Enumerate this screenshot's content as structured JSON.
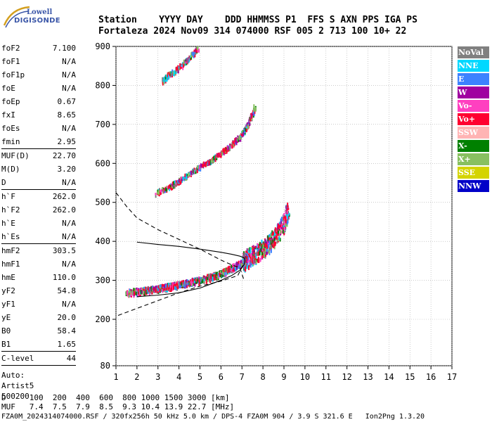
{
  "logo": {
    "line1": "Lowell",
    "line2": "DIGISONDE"
  },
  "header": {
    "line1": "Station    YYYY DAY    DDD HHMMSS P1  FFS S AXN PPS IGA PS",
    "line2": "Fortaleza 2024 Nov09 314 074000 RSF 005 2 713 100 10+ 22"
  },
  "params_groups": [
    [
      {
        "label": "foF2",
        "value": "7.100"
      },
      {
        "label": "foF1",
        "value": "N/A"
      },
      {
        "label": "foF1p",
        "value": "N/A"
      },
      {
        "label": "foE",
        "value": "N/A"
      },
      {
        "label": "foEp",
        "value": "0.67"
      },
      {
        "label": "fxI",
        "value": "8.65"
      },
      {
        "label": "foEs",
        "value": "N/A"
      },
      {
        "label": "fmin",
        "value": "2.95"
      }
    ],
    [
      {
        "label": "MUF(D)",
        "value": "22.70"
      },
      {
        "label": "M(D)",
        "value": "3.20"
      },
      {
        "label": "D",
        "value": "N/A"
      }
    ],
    [
      {
        "label": "h`F",
        "value": "262.0"
      },
      {
        "label": "h`F2",
        "value": "262.0"
      },
      {
        "label": "h`E",
        "value": "N/A"
      },
      {
        "label": "h`Es",
        "value": "N/A"
      }
    ],
    [
      {
        "label": "hmF2",
        "value": "303.5"
      },
      {
        "label": "hmF1",
        "value": "N/A"
      },
      {
        "label": "hmE",
        "value": "110.0"
      },
      {
        "label": "yF2",
        "value": "54.8"
      },
      {
        "label": "yF1",
        "value": "N/A"
      },
      {
        "label": "yE",
        "value": "20.0"
      },
      {
        "label": "B0",
        "value": "58.4"
      },
      {
        "label": "B1",
        "value": "1.65"
      }
    ],
    [
      {
        "label": "C-level",
        "value": "44"
      }
    ]
  ],
  "auto": {
    "line1": "Auto:",
    "line2": "Artist5",
    "line3": "500200"
  },
  "legend": [
    {
      "label": "NoVal",
      "color": "#808080"
    },
    {
      "label": "NNE",
      "color": "#00d8ff"
    },
    {
      "label": "E",
      "color": "#3c82ff"
    },
    {
      "label": "W",
      "color": "#a000a0"
    },
    {
      "label": "Vo-",
      "color": "#ff40c0"
    },
    {
      "label": "Vo+",
      "color": "#ff0030"
    },
    {
      "label": "SSW",
      "color": "#ffb4b4"
    },
    {
      "label": "X-",
      "color": "#008000"
    },
    {
      "label": "X+",
      "color": "#88c060"
    },
    {
      "label": "SSE",
      "color": "#d4d400"
    },
    {
      "label": "NNW",
      "color": "#0000c8"
    }
  ],
  "bottom": {
    "d_line": "D     100  200  400  600  800 1000 1500 3000 [km]",
    "muf_line": "MUF   7.4  7.5  7.9  8.5  9.3 10.4 13.9 22.7 [MHz]"
  },
  "footer": "FZA0M_2024314074000.RSF / 320fx256h 50 kHz 5.0 km / DPS-4 FZA0M 904 / 3.9 S 321.6 E   Ion2Png 1.3.20",
  "chart_data": {
    "type": "scatter",
    "x_ticks": [
      1,
      2,
      3,
      4,
      5,
      6,
      7,
      8,
      9,
      10,
      11,
      12,
      13,
      14,
      15,
      16,
      17
    ],
    "y_ticks": [
      80,
      200,
      300,
      400,
      500,
      600,
      700,
      800,
      900
    ],
    "xlim": [
      1,
      17
    ],
    "ylim": [
      80,
      900
    ],
    "xlabel": "",
    "ylabel": "",
    "grid": true,
    "traces": [
      {
        "name": "",
        "kind": "echo-band",
        "x": [
          1.5,
          2,
          2.5,
          3,
          3.5,
          4,
          4.5,
          5,
          5.5,
          6,
          6.5,
          7,
          7.3,
          7.6,
          8,
          8.3,
          8.6,
          9,
          9.2
        ],
        "y": [
          272,
          275,
          278,
          282,
          287,
          292,
          298,
          305,
          312,
          322,
          334,
          350,
          362,
          372,
          385,
          400,
          418,
          450,
          490
        ]
      },
      {
        "name": "",
        "kind": "echo-band",
        "x": [
          2.9,
          3.5,
          4,
          4.5,
          5,
          5.5,
          6,
          6.5,
          7,
          7.3,
          7.6
        ],
        "y": [
          528,
          542,
          558,
          578,
          595,
          610,
          630,
          652,
          680,
          705,
          750
        ]
      },
      {
        "name": "",
        "kind": "echo-band",
        "x": [
          3.2,
          3.5,
          4,
          4.5,
          4.9
        ],
        "y": [
          815,
          830,
          850,
          875,
          900
        ]
      },
      {
        "name": "",
        "kind": "profile-solid",
        "x": [
          2,
          3,
          4,
          5,
          6,
          6.5,
          6.9,
          7.1,
          7.15,
          7.1,
          6.9,
          6.5,
          6,
          5.5,
          5,
          4,
          3,
          2
        ],
        "y": [
          258,
          262,
          268,
          280,
          300,
          312,
          326,
          340,
          350,
          358,
          362,
          367,
          372,
          376,
          380,
          387,
          392,
          398
        ]
      },
      {
        "name": "",
        "kind": "profile-dashed",
        "x": [
          1,
          1.5,
          2,
          3,
          4,
          5,
          6,
          6.5,
          6.9,
          7.1
        ],
        "y": [
          525,
          490,
          460,
          430,
          405,
          380,
          352,
          340,
          332,
          300
        ]
      },
      {
        "name": "",
        "kind": "profile-dashed",
        "x": [
          1.1,
          2,
          3,
          4,
          5,
          6,
          6.8,
          7.1
        ],
        "y": [
          210,
          228,
          248,
          268,
          285,
          298,
          312,
          345
        ]
      }
    ]
  }
}
